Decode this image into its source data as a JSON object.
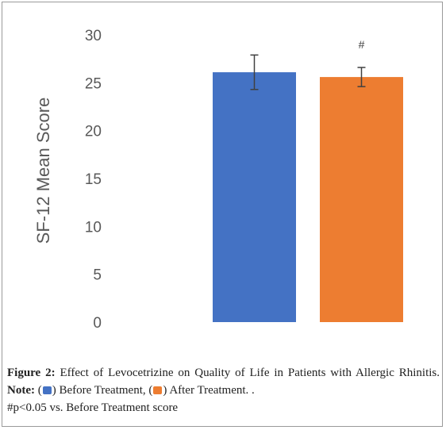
{
  "colors": {
    "before": "#4472C4",
    "after": "#ED7D31",
    "axis_text": "#595959",
    "error_bar": "#404040"
  },
  "chart_data": {
    "type": "bar",
    "categories": [
      "Before Treatment",
      "After Treatment"
    ],
    "values": [
      26.1,
      25.6
    ],
    "errors": [
      1.8,
      1.0
    ],
    "annotations": [
      "",
      "#"
    ],
    "ylabel": "SF-12 Mean Score",
    "ylim": [
      0,
      30
    ],
    "yticks": [
      "0",
      "5",
      "10",
      "15",
      "20",
      "25",
      "30"
    ],
    "grid": false,
    "legend": "none"
  },
  "caption": {
    "figure_label": "Figure 2:",
    "text": "Effect of Levocetrizine on Quality of Life in Patients with Allergic Rhinitis.",
    "note_label": "Note:",
    "before_label": "Before Treatment,",
    "after_label": "After Treatment. .",
    "footnote": "#p<0.05 vs. Before Treatment score"
  }
}
